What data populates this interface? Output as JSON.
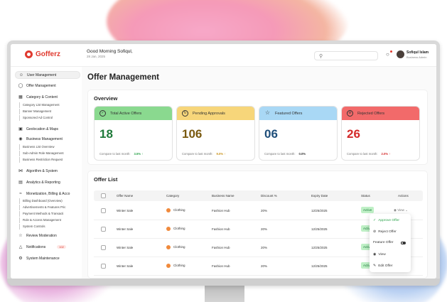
{
  "app": {
    "logo_text": "Gofferz",
    "brand_color": "#e03a2f"
  },
  "header": {
    "greeting": "Good Morning Sofiqul,",
    "date": "28 Jan, 2025",
    "user_name": "Sofiqul Islam",
    "user_role": "Business Admin"
  },
  "sidebar": {
    "items": [
      {
        "label": "User Management",
        "icon": "users-icon",
        "active": true
      },
      {
        "label": "Offer Management",
        "icon": "offer-icon"
      },
      {
        "label": "Category & Content",
        "icon": "grid-icon"
      },
      {
        "label": "Geolocation & Maps",
        "icon": "map-icon"
      },
      {
        "label": "Business Management",
        "icon": "briefcase-icon"
      },
      {
        "label": "Algorithm & System",
        "icon": "algorithm-icon"
      },
      {
        "label": "Analytics & Reporting",
        "icon": "chart-icon"
      },
      {
        "label": "Monetization, Billing & Acco",
        "icon": "money-icon"
      },
      {
        "label": "Review Moderation",
        "icon": "review-icon"
      },
      {
        "label": "Notifications",
        "icon": "bell-icon",
        "badge": "102"
      },
      {
        "label": "System Maintenance",
        "icon": "gear-icon"
      }
    ],
    "category_subs": [
      "Category List Management",
      "Banner Management",
      "Sponsored Ad Control"
    ],
    "business_subs": [
      "Business List Overview",
      "Sub-Admin Role Management",
      "Business Restriction Request"
    ],
    "billing_subs": [
      "Billing Dashboard (Overview)",
      "Advertisements & Features Pric",
      "Payment Methods & Transacti",
      "Role & Access Management",
      "System Controls"
    ]
  },
  "main": {
    "title": "Offer Management",
    "overview_title": "Overview",
    "stats": [
      {
        "label": "Total Active Offers",
        "value": "18",
        "compare": "Compare to last month",
        "change": "3.5% ↑",
        "color": "#8ad98f",
        "num_color": "#1f7a3a",
        "change_color": "#2aa24a"
      },
      {
        "label": "Pending Approvals",
        "value": "106",
        "compare": "Compare to last month",
        "change": "9.0% ↑",
        "color": "#f7d67a",
        "num_color": "#7a5a10",
        "change_color": "#c9921a"
      },
      {
        "label": "Featured Offers",
        "value": "06",
        "compare": "Compare to last month",
        "change": "0.0%",
        "color": "#a9d8f5",
        "num_color": "#1e4e7a",
        "change_color": "#333333"
      },
      {
        "label": "Rejected Offers",
        "value": "26",
        "compare": "Compare to last month",
        "change": "2.0% ↑",
        "color": "#f26a6a",
        "num_color": "#d42a2a",
        "change_color": "#d42a2a"
      }
    ],
    "list_title": "Offer List",
    "columns": [
      "Offer Name",
      "Category",
      "Business Name",
      "Discount %",
      "Expiry Date",
      "Status",
      "Actions"
    ],
    "rows": [
      {
        "name": "Winter Sale",
        "category": "Clothing",
        "business": "Fashion Hub",
        "discount": "20%",
        "expiry": "12/25/2025",
        "status": "Active",
        "action": "View"
      },
      {
        "name": "Winter Sale",
        "category": "Clothing",
        "business": "Fashion Hub",
        "discount": "20%",
        "expiry": "12/25/2025",
        "status": "Active"
      },
      {
        "name": "Winter Sale",
        "category": "Clothing",
        "business": "Fashion Hub",
        "discount": "20%",
        "expiry": "12/25/2025",
        "status": "Active"
      },
      {
        "name": "Winter Sale",
        "category": "Clothing",
        "business": "Fashion Hub",
        "discount": "20%",
        "expiry": "12/25/2025",
        "status": "Active"
      }
    ],
    "menu": {
      "approve": "Approve Offer",
      "reject": "Reject Offer",
      "feature": "Feature Offer",
      "view": "View",
      "edit": "Edit Offer"
    }
  }
}
